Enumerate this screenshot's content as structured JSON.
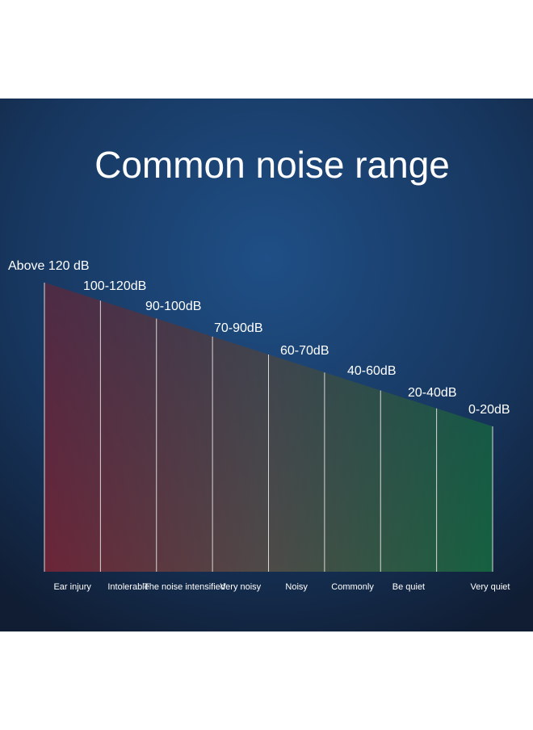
{
  "title": "Common noise range",
  "segments": [
    {
      "range": "Above 120 dB",
      "label": "Ear injury"
    },
    {
      "range": "100-120dB",
      "label": "Intolerable"
    },
    {
      "range": "90-100dB",
      "label": "The noise intensified"
    },
    {
      "range": "70-90dB",
      "label": "Very noisy"
    },
    {
      "range": "60-70dB",
      "label": "Noisy"
    },
    {
      "range": "40-60dB",
      "label": "Commonly"
    },
    {
      "range": "20-40dB",
      "label": "Be quiet"
    },
    {
      "range": "0-20dB",
      "label": "Very quiet"
    }
  ]
}
